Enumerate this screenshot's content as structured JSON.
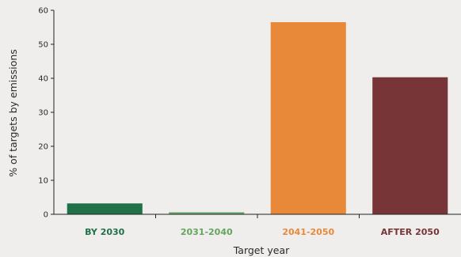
{
  "chart_data": {
    "type": "bar",
    "categories": [
      "BY 2030",
      "2031-2040",
      "2041-2050",
      "AFTER 2050"
    ],
    "values": [
      3.2,
      0.6,
      56.5,
      40.3
    ],
    "category_colors": [
      "#1f7147",
      "#63a55f",
      "#e8893a",
      "#773537"
    ],
    "bar_colors": [
      "#1f7147",
      "#6aa86a",
      "#e8893a",
      "#773537"
    ],
    "xlabel": "Target year",
    "ylabel": "% of targets by emissions",
    "ylim": [
      0,
      60
    ],
    "yticks": [
      0,
      10,
      20,
      30,
      40,
      50,
      60
    ],
    "grid": false
  }
}
